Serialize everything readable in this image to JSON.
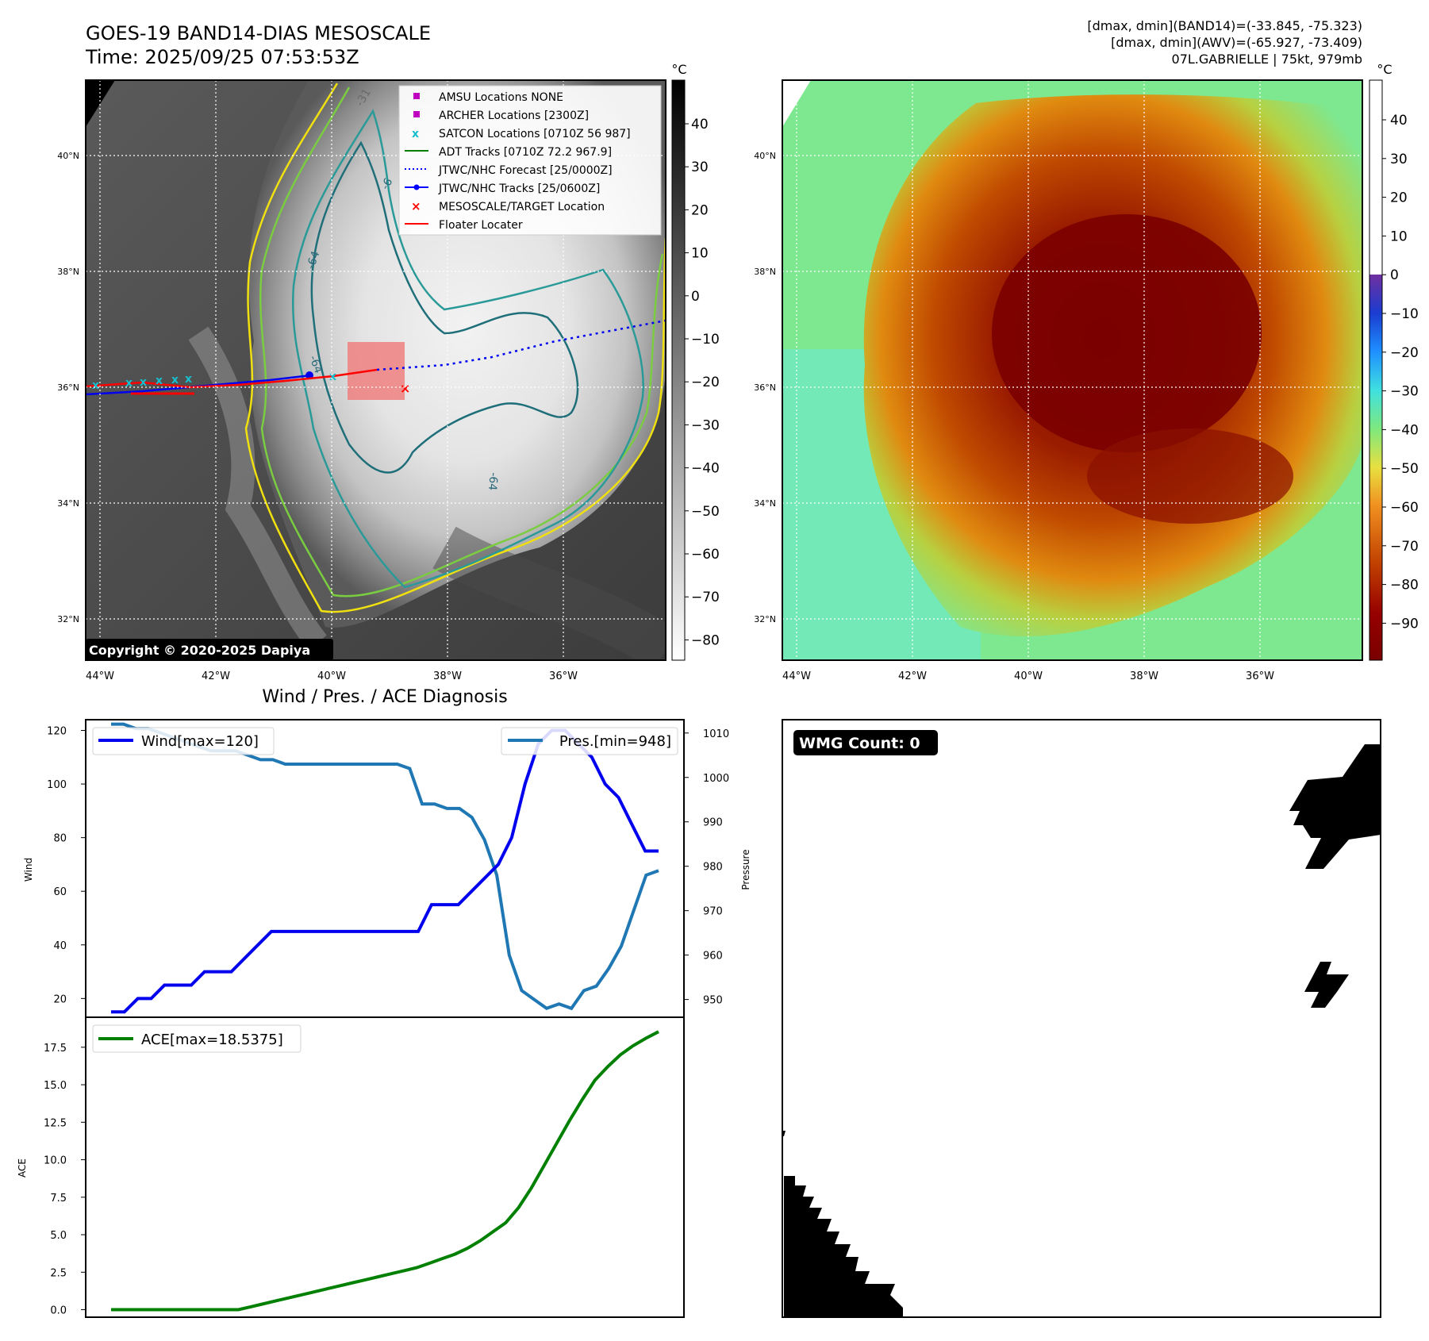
{
  "header": {
    "title": "GOES-19 BAND14-DIAS MESOSCALE",
    "time": "Time: 2025/09/25 07:53:53Z",
    "dmax_band14": "[dmax, dmin](BAND14)=(-33.845, -75.323)",
    "dmax_awv": "[dmax, dmin](AWV)=(-65.927, -73.409)",
    "storm_info": "07L.GABRIELLE | 75kt, 979mb"
  },
  "maps": {
    "lat_labels": [
      "40°N",
      "38°N",
      "36°N",
      "34°N",
      "32°N"
    ],
    "lon_labels": [
      "44°W",
      "42°W",
      "40°W",
      "38°W",
      "36°W"
    ],
    "copyright": "Copyright © 2020-2025 Dapiya",
    "contour_labels": [
      "-31",
      "-64",
      "-64",
      "-64",
      "-6"
    ]
  },
  "ir_colorbar": {
    "unit": "°C",
    "ticks": [
      "40",
      "30",
      "20",
      "10",
      "0",
      "−10",
      "−20",
      "−30",
      "−40",
      "−50",
      "−60",
      "−70",
      "−80"
    ]
  },
  "color_colorbar": {
    "unit": "°C",
    "ticks": [
      "40",
      "30",
      "20",
      "10",
      "0",
      "−10",
      "−20",
      "−30",
      "−40",
      "−50",
      "−60",
      "−70",
      "−80",
      "−90"
    ]
  },
  "legend": {
    "items": [
      {
        "label": "AMSU Locations NONE",
        "color": "#c000c0"
      },
      {
        "label": "ARCHER Locations [2300Z]",
        "color": "#c000c0"
      },
      {
        "label": "SATCON Locations [0710Z 56 987]",
        "color": "#17becf"
      },
      {
        "label": "ADT Tracks [0710Z 72.2 967.9]",
        "color": "#008000"
      },
      {
        "label": "JTWC/NHC Forecast [25/0000Z]",
        "color": "#0000ff"
      },
      {
        "label": "JTWC/NHC Tracks [25/0600Z]",
        "color": "#0000ff"
      },
      {
        "label": "MESOSCALE/TARGET Location",
        "color": "#ff0000"
      },
      {
        "label": "Floater Locater",
        "color": "#ff0000"
      }
    ]
  },
  "diagnosis": {
    "title": "Wind / Pres. / ACE Diagnosis",
    "wind_legend": "Wind[max=120]",
    "pres_legend": "Pres.[min=948]",
    "ace_legend": "ACE[max=18.5375]",
    "wind_axis_label": "Wind",
    "pres_axis_label": "Pressure",
    "ace_axis_label": "ACE",
    "wind_ticks": [
      "120",
      "100",
      "80",
      "60",
      "40",
      "20"
    ],
    "pres_ticks": [
      "1010",
      "1000",
      "990",
      "980",
      "970",
      "960",
      "950"
    ],
    "ace_ticks": [
      "17.5",
      "15.0",
      "12.5",
      "10.0",
      "7.5",
      "5.0",
      "2.5",
      "0.0"
    ]
  },
  "wmg": {
    "label": "WMG Count: 0"
  },
  "chart_data": [
    {
      "type": "line",
      "title": "Wind / Pres. / ACE Diagnosis",
      "ylabel": "Wind",
      "ylim": [
        13,
        124
      ],
      "series": [
        {
          "name": "Wind[max=120]",
          "color": "#0000ee",
          "values": [
            15,
            15,
            20,
            20,
            25,
            25,
            25,
            30,
            30,
            30,
            35,
            40,
            45,
            45,
            45,
            45,
            45,
            45,
            45,
            45,
            45,
            45,
            45,
            45,
            55,
            55,
            55,
            60,
            65,
            70,
            80,
            100,
            115,
            120,
            120,
            115,
            110,
            100,
            95,
            85,
            75,
            75
          ]
        }
      ]
    },
    {
      "type": "line",
      "ylabel": "Pressure",
      "ylim": [
        946,
        1013
      ],
      "series": [
        {
          "name": "Pres.[min=948]",
          "color": "#1f77b4",
          "values": [
            1012,
            1012,
            1011,
            1011,
            1010,
            1009,
            1008,
            1007,
            1006,
            1006,
            1006,
            1005,
            1004,
            1004,
            1003,
            1003,
            1003,
            1003,
            1003,
            1003,
            1003,
            1003,
            1003,
            1003,
            1002,
            994,
            994,
            993,
            993,
            991,
            986,
            978,
            960,
            952,
            950,
            948,
            949,
            948,
            952,
            953,
            957,
            962,
            970,
            978,
            979
          ]
        }
      ]
    },
    {
      "type": "line",
      "ylabel": "ACE",
      "ylim": [
        -0.5,
        19.5
      ],
      "series": [
        {
          "name": "ACE[max=18.5375]",
          "color": "#008000",
          "values": [
            0,
            0,
            0,
            0,
            0,
            0,
            0,
            0,
            0,
            0,
            0,
            0.2,
            0.4,
            0.6,
            0.8,
            1.0,
            1.2,
            1.4,
            1.6,
            1.8,
            2.0,
            2.2,
            2.4,
            2.6,
            2.8,
            3.1,
            3.4,
            3.7,
            4.1,
            4.6,
            5.2,
            5.8,
            6.8,
            8.1,
            9.6,
            11.1,
            12.6,
            14.0,
            15.3,
            16.2,
            17.0,
            17.6,
            18.1,
            18.5375
          ]
        }
      ]
    }
  ]
}
